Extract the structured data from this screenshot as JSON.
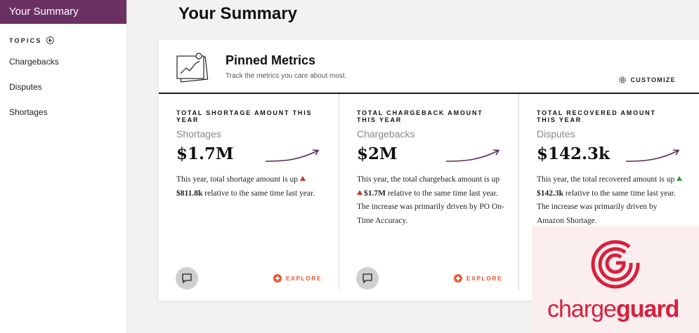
{
  "sidebar": {
    "active_item": "Your Summary",
    "topics_label": "TOPICS",
    "items": [
      {
        "label": "Chargebacks"
      },
      {
        "label": "Disputes"
      },
      {
        "label": "Shortages"
      }
    ]
  },
  "header": {
    "title": "Your Summary"
  },
  "card": {
    "title": "Pinned Metrics",
    "subtitle": "Track the metrics you care about most.",
    "customize_label": "CUSTOMIZE",
    "explore_label": "EXPLORE",
    "metrics": [
      {
        "label": "TOTAL SHORTAGE AMOUNT THIS YEAR",
        "topic": "Shortages",
        "value": "$1.7M",
        "desc_before": "This year, total shortage amount is up",
        "amount": "$811.8k",
        "desc_after": "relative to the same time last year.",
        "trend": "up-red"
      },
      {
        "label": "TOTAL CHARGEBACK AMOUNT THIS YEAR",
        "topic": "Chargebacks",
        "value": "$2M",
        "desc_before": "This year, the total chargeback amount is up",
        "amount": "$1.7M",
        "desc_after": "relative to the same time last year. The increase was primarily driven by PO On-Time Accuracy.",
        "trend": "up-red"
      },
      {
        "label": "TOTAL RECOVERED AMOUNT THIS YEAR",
        "topic": "Disputes",
        "value": "$142.3k",
        "desc_before": "This year, the total recovered amount is up",
        "amount": "$142.3k",
        "desc_after": "relative to the same time last year. The increase was primarily driven by Amazon Shortage.",
        "trend": "up-green"
      }
    ]
  },
  "brand": {
    "name_light": "charge",
    "name_bold": "guard"
  },
  "colors": {
    "accent_purple": "#6b3163",
    "explore_orange": "#e4582f",
    "trend_line": "#5b2a56",
    "brand_red": "#d81f3c"
  }
}
